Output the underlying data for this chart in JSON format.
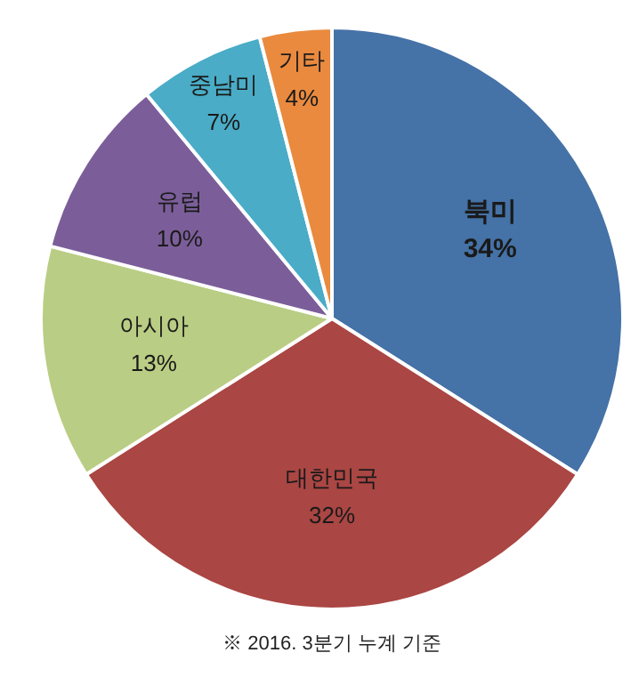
{
  "chart_data": {
    "type": "pie",
    "categories": [
      "북미",
      "대한민국",
      "아시아",
      "유럽",
      "중남미",
      "기타"
    ],
    "values": [
      34,
      32,
      13,
      10,
      7,
      4
    ],
    "value_labels": [
      "34%",
      "32%",
      "13%",
      "10%",
      "7%",
      "4%"
    ],
    "colors": [
      "#4572a7",
      "#aa4643",
      "#bacd84",
      "#7b5e99",
      "#4aacc6",
      "#e98a3f"
    ],
    "annotations": [
      "※ 2016. 3분기 누계 기준"
    ],
    "legend": false
  }
}
